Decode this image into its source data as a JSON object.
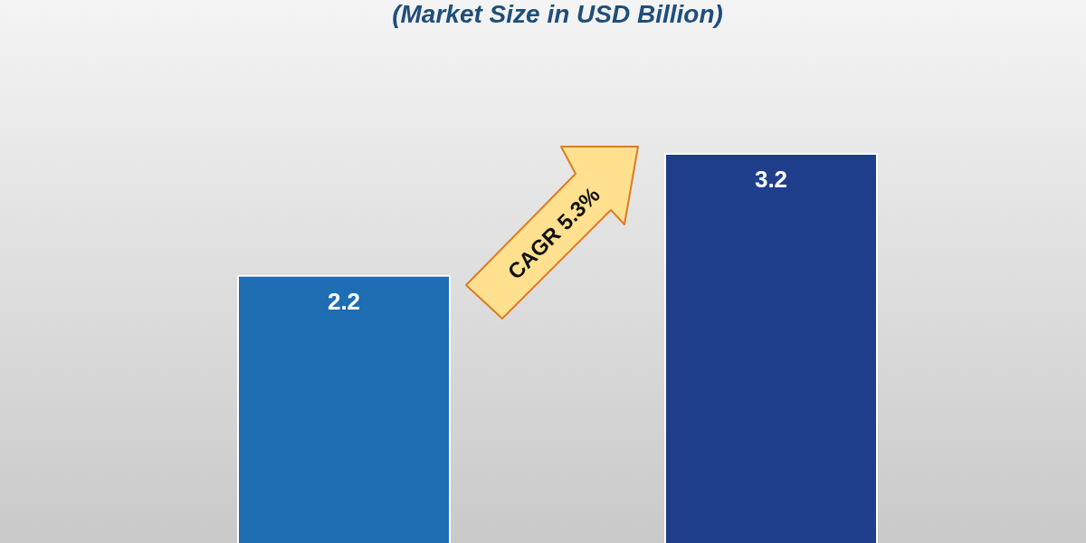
{
  "chart_data": {
    "type": "bar",
    "title": "(Market Size in USD Billion)",
    "categories": [
      null,
      null
    ],
    "values": [
      2.2,
      3.2
    ],
    "colors": [
      "#1f6db3",
      "#1f3f8c"
    ],
    "data_labels": true,
    "legend": false,
    "tick_labels": false,
    "annotations": [
      "CAGR 5.3%"
    ]
  }
}
